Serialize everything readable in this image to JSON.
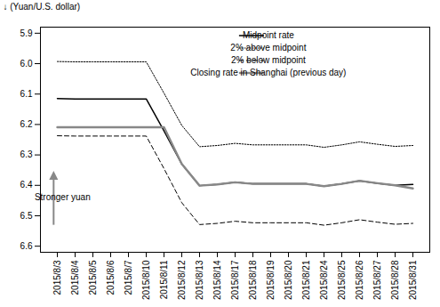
{
  "chart_data": {
    "type": "line",
    "ylabel": "(Yuan/U.S. dollar)",
    "x": [
      "2015/8/3",
      "2015/8/4",
      "2015/8/5",
      "2015/8/6",
      "2015/8/7",
      "2015/8/10",
      "2015/8/11",
      "2015/8/12",
      "2015/8/13",
      "2015/8/14",
      "2015/8/17",
      "2015/8/18",
      "2015/8/19",
      "2015/8/20",
      "2015/8/21",
      "2015/8/24",
      "2015/8/25",
      "2015/8/26",
      "2015/8/27",
      "2015/8/28",
      "2015/8/31"
    ],
    "series": [
      {
        "name": "Midpoint rate",
        "color": "#000000",
        "line_style": "solid",
        "values": [
          6.115,
          6.116,
          6.116,
          6.116,
          6.116,
          6.116,
          6.221,
          6.33,
          6.401,
          6.397,
          6.39,
          6.395,
          6.395,
          6.395,
          6.395,
          6.403,
          6.395,
          6.385,
          6.393,
          6.4,
          6.397
        ]
      },
      {
        "name": "2% above midpoint",
        "color": "#000000",
        "line_style": "dotted",
        "values": [
          5.993,
          5.994,
          5.994,
          5.994,
          5.994,
          5.994,
          6.097,
          6.203,
          6.273,
          6.269,
          6.262,
          6.267,
          6.267,
          6.267,
          6.267,
          6.275,
          6.267,
          6.257,
          6.265,
          6.272,
          6.269
        ]
      },
      {
        "name": "2% below midpoint",
        "color": "#000000",
        "line_style": "dashed",
        "values": [
          6.237,
          6.238,
          6.238,
          6.238,
          6.238,
          6.238,
          6.345,
          6.457,
          6.529,
          6.525,
          6.518,
          6.523,
          6.523,
          6.523,
          6.523,
          6.531,
          6.523,
          6.513,
          6.521,
          6.528,
          6.525
        ]
      },
      {
        "name": "Closing rate in Shanghai (previous day)",
        "color": "#888888",
        "line_style": "solid",
        "values": [
          6.209,
          6.209,
          6.209,
          6.209,
          6.209,
          6.209,
          6.209,
          6.33,
          6.401,
          6.397,
          6.39,
          6.395,
          6.395,
          6.395,
          6.395,
          6.403,
          6.395,
          6.385,
          6.393,
          6.4,
          6.41
        ]
      }
    ],
    "ylim": [
      6.62,
      5.88
    ],
    "yticks": [
      5.9,
      {
        "value": 6.0,
        "label": "6.0"
      },
      6.1,
      6.2,
      6.3,
      6.4,
      6.5,
      6.6
    ],
    "legend": "upper right",
    "grid": false,
    "annotations": [
      "Stronger yuan"
    ]
  }
}
